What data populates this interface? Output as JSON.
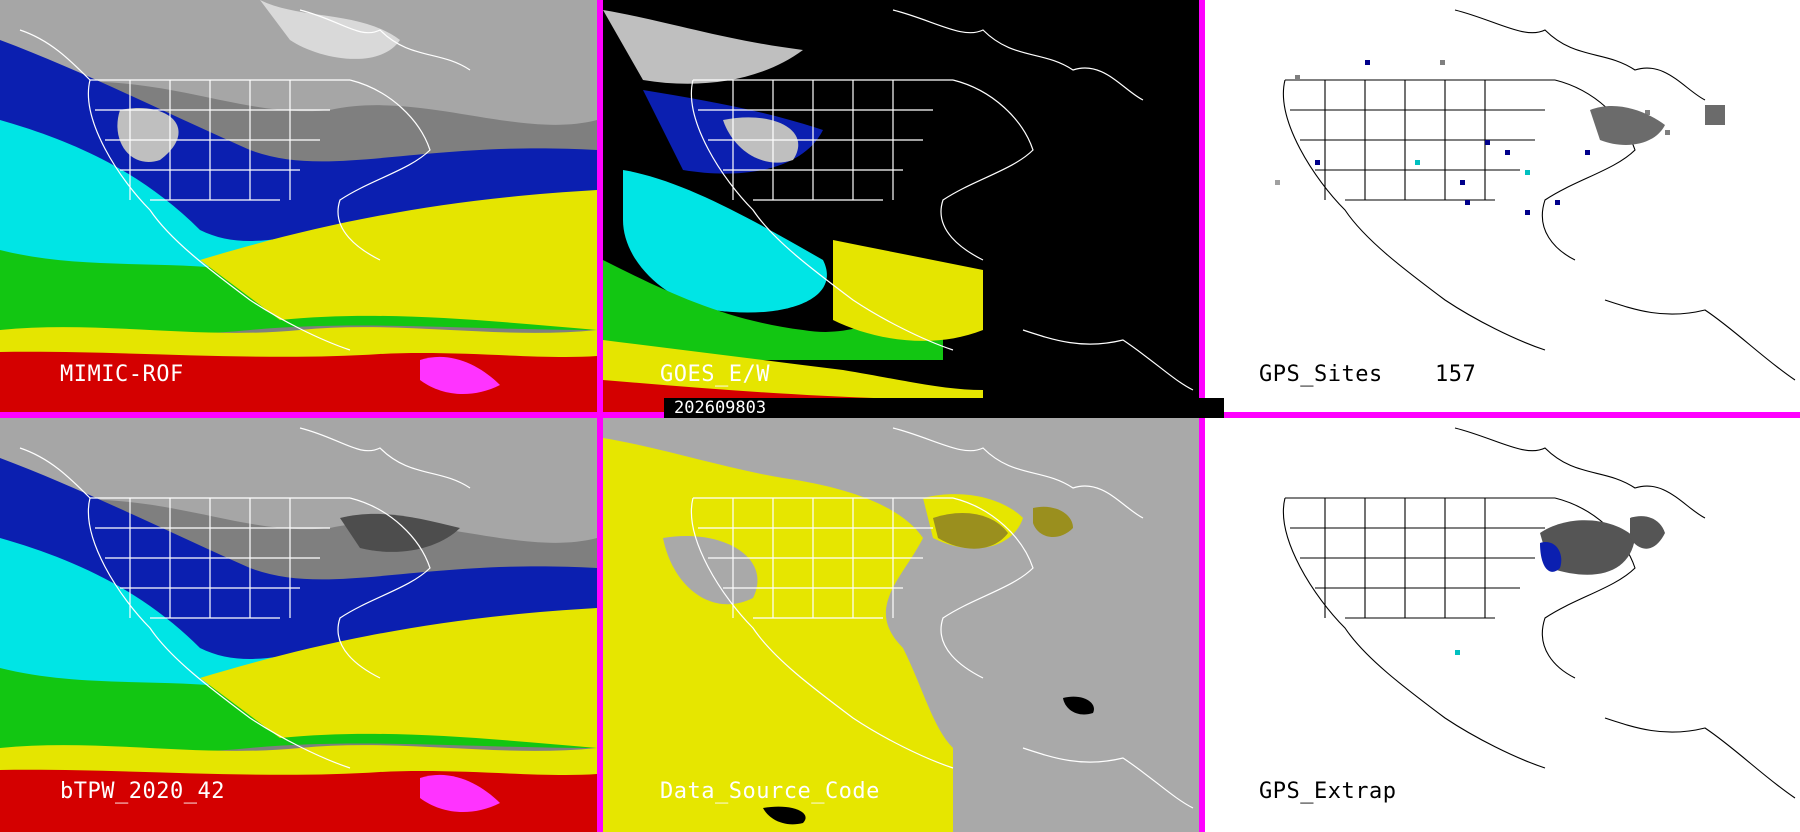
{
  "panels": [
    {
      "label": "MIMIC-ROF",
      "theme": "dark"
    },
    {
      "label": "GOES_E/W",
      "theme": "dark"
    },
    {
      "label": "GPS_Sites",
      "count": "157",
      "theme": "light"
    },
    {
      "label": "bTPW_2020_42",
      "theme": "dark"
    },
    {
      "label": "Data_Source_Code",
      "theme": "dark"
    },
    {
      "label": "GPS_Extrap",
      "theme": "light"
    }
  ],
  "timestamp": "202609803",
  "colors": {
    "divider": "#ff00ff",
    "tpw_ramp": [
      "#808080",
      "#00008b",
      "#0000ff",
      "#00ffff",
      "#00c000",
      "#ffff00",
      "#c0a000",
      "#ff0000",
      "#ff00ff"
    ],
    "source_yellow": "#e6e600",
    "source_gray": "#a9a9a9",
    "source_olive": "#9a8f1e"
  },
  "icons": [
    "gps-site-marker-icon"
  ]
}
